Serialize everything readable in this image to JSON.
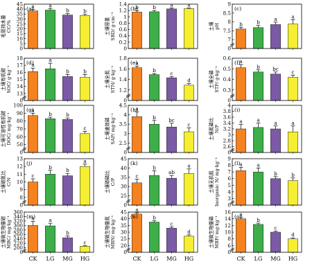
{
  "categories": [
    "CK",
    "LG",
    "MG",
    "HG"
  ],
  "colors": [
    "#f58220",
    "#3dae49",
    "#7b5aa6",
    "#f5ee32"
  ],
  "chart_data": [
    {
      "type": "bar",
      "panel": "(a)",
      "ylabel_cn": "毛管持水量",
      "ylabel_en": "CC/%",
      "ylim": [
        0,
        45
      ],
      "yticks": [
        0,
        5,
        10,
        15,
        20,
        25,
        30,
        35,
        40,
        45
      ],
      "values": [
        38.2,
        39.0,
        34.0,
        33.5
      ],
      "errors": [
        1.6,
        1.6,
        1.5,
        1.2
      ],
      "letters": [
        "a",
        "a",
        "b",
        "b"
      ]
    },
    {
      "type": "bar",
      "panel": "(b)",
      "ylabel_cn": "土壤容重",
      "ylabel_en": "SBD/ g·cm⁻³",
      "ylim": [
        0,
        1.4
      ],
      "yticks": [
        0,
        0.2,
        0.4,
        0.6,
        0.8,
        1.0,
        1.2,
        1.4
      ],
      "values": [
        1.15,
        1.16,
        1.25,
        1.26
      ],
      "errors": [
        0.05,
        0.04,
        0.03,
        0.02
      ],
      "letters": [
        "b",
        "b",
        "a",
        "a"
      ]
    },
    {
      "type": "bar",
      "panel": "(c)",
      "ylabel_cn": "土壤",
      "ylabel_en": "pH",
      "ylim": [
        0,
        9.0
      ],
      "yticks": [
        0,
        7.0,
        7.5,
        8.0,
        8.5,
        9.0
      ],
      "values": [
        7.6,
        7.68,
        7.85,
        7.88
      ],
      "errors": [
        0.1,
        0.12,
        0.14,
        0.25
      ],
      "letters": [
        "b",
        "b",
        "a",
        "a"
      ]
    },
    {
      "type": "bar",
      "panel": "(d)",
      "ylabel_cn": "土壤有机碳",
      "ylabel_en": "SOC/ g·kg⁻¹",
      "ylim": [
        0,
        18
      ],
      "yticks": [
        0,
        13,
        14,
        15,
        16,
        17,
        18
      ],
      "values": [
        16.1,
        16.5,
        15.4,
        15.3
      ],
      "errors": [
        0.5,
        0.8,
        0.3,
        0.4
      ],
      "letters": [
        "a",
        "a",
        "b",
        "b"
      ]
    },
    {
      "type": "bar",
      "panel": "(e)",
      "ylabel_cn": "土壤全氮",
      "ylabel_en": "STN/ g·kg⁻¹",
      "ylim": [
        0,
        1.8
      ],
      "yticks": [
        0,
        1.2,
        1.4,
        1.6,
        1.8
      ],
      "values": [
        1.62,
        1.49,
        1.43,
        1.29
      ],
      "errors": [
        0.03,
        0.02,
        0.02,
        0.03
      ],
      "letters": [
        "a",
        "b",
        "c",
        "d"
      ]
    },
    {
      "type": "bar",
      "panel": "(f)",
      "ylabel_cn": "土壤全磷",
      "ylabel_en": "STP/ g·kg⁻¹",
      "ylim": [
        0,
        0.6
      ],
      "yticks": [
        0,
        0.3,
        0.4,
        0.5,
        0.6
      ],
      "values": [
        0.51,
        0.47,
        0.45,
        0.42
      ],
      "errors": [
        0.03,
        0.02,
        0.02,
        0.02
      ],
      "letters": [
        "a",
        "b",
        "bc",
        "c"
      ]
    },
    {
      "type": "bar",
      "panel": "(g)",
      "ylabel_cn": "土壤可溶性有机碳",
      "ylabel_en": "DOC/ mg·kg⁻¹",
      "ylim": [
        0,
        100
      ],
      "yticks": [
        0,
        50,
        60,
        70,
        80,
        90,
        100
      ],
      "values": [
        87,
        83,
        82,
        64
      ],
      "errors": [
        3,
        2,
        2,
        3
      ],
      "letters": [
        "a",
        "b",
        "b",
        "c"
      ]
    },
    {
      "type": "bar",
      "panel": "(h)",
      "ylabel_cn": "土壤速效磷",
      "ylabel_en": "SAP/ mg·kg⁻¹",
      "ylim": [
        0,
        4.5
      ],
      "yticks": [
        0,
        2.5,
        3.0,
        3.5,
        4.0,
        4.5
      ],
      "values": [
        3.9,
        3.5,
        3.35,
        3.1
      ],
      "errors": [
        0.25,
        0.2,
        0.2,
        0.2
      ],
      "letters": [
        "a",
        "b",
        "bc",
        "c"
      ]
    },
    {
      "type": "bar",
      "panel": "(i)",
      "ylabel_cn": "土壤氮磷比",
      "ylabel_en": "N/P",
      "ylim": [
        0,
        4.0
      ],
      "yticks": [
        0,
        2.6,
        2.8,
        3.0,
        3.2,
        3.4,
        3.6,
        3.8,
        4.0
      ],
      "values": [
        3.2,
        3.25,
        3.2,
        3.1
      ],
      "errors": [
        0.15,
        0.15,
        0.1,
        0.2
      ],
      "letters": [
        "a",
        "a",
        "a",
        "a"
      ]
    },
    {
      "type": "bar",
      "panel": "(j)",
      "ylabel_cn": "土壤碳氮比",
      "ylabel_en": "C/N",
      "ylim": [
        0,
        13
      ],
      "yticks": [
        0,
        8,
        9,
        10,
        11,
        12,
        13
      ],
      "values": [
        10.0,
        11.0,
        10.8,
        12.0
      ],
      "errors": [
        0.4,
        0.5,
        0.3,
        0.3
      ],
      "letters": [
        "c",
        "b",
        "b",
        "a"
      ]
    },
    {
      "type": "bar",
      "panel": "(k)",
      "ylabel_cn": "土壤碳磷比",
      "ylabel_en": "C/P",
      "ylim": [
        0,
        45
      ],
      "yticks": [
        0,
        25,
        30,
        35,
        40,
        45
      ],
      "values": [
        32,
        36,
        34.5,
        37
      ],
      "errors": [
        2,
        2.5,
        1.5,
        2.5
      ],
      "letters": [
        "c",
        "b",
        "ab",
        "a"
      ]
    },
    {
      "type": "bar",
      "panel": "(l)",
      "ylabel_cn": "土壤无机氮",
      "ylabel_en": "Inorganic N/ mg·kg⁻¹",
      "ylim": [
        0,
        9
      ],
      "yticks": [
        0,
        3,
        4,
        5,
        6,
        7,
        8,
        9
      ],
      "values": [
        7.2,
        7.0,
        6.0,
        5.7
      ],
      "errors": [
        0.5,
        0.6,
        0.3,
        0.4
      ],
      "letters": [
        "a",
        "a",
        "b",
        "b"
      ]
    },
    {
      "type": "bar",
      "panel": "(m)",
      "ylabel_cn": "土壤微生物量碳",
      "ylabel_en": "MBC/ mg·kg⁻¹",
      "ylim": [
        0,
        360
      ],
      "yticks": [
        0,
        200,
        220,
        240,
        260,
        280,
        300,
        320,
        340,
        360
      ],
      "values": [
        300,
        298,
        245,
        207
      ],
      "errors": [
        18,
        12,
        8,
        3
      ],
      "letters": [
        "a",
        "a",
        "b",
        "c"
      ]
    },
    {
      "type": "bar",
      "panel": "(n)",
      "ylabel_cn": "土壤微生物量氮",
      "ylabel_en": "MBN/ mg·kg⁻¹",
      "ylim": [
        0,
        45
      ],
      "yticks": [
        0,
        20,
        25,
        30,
        35,
        40,
        45
      ],
      "values": [
        43.5,
        37.5,
        33,
        27
      ],
      "errors": [
        1,
        1,
        1,
        1
      ],
      "letters": [
        "a",
        "b",
        "c",
        "d"
      ]
    },
    {
      "type": "bar",
      "panel": "(o)",
      "ylabel_cn": "土壤微生物量磷",
      "ylabel_en": "MBP/ mg·kg⁻¹",
      "ylim": [
        0,
        16
      ],
      "yticks": [
        0,
        6,
        8,
        10,
        12,
        14,
        16
      ],
      "values": [
        14.0,
        12.3,
        10.0,
        8.0
      ],
      "errors": [
        0.5,
        0.4,
        0.3,
        0.3
      ],
      "letters": [
        "a",
        "b",
        "c",
        "d"
      ]
    }
  ]
}
